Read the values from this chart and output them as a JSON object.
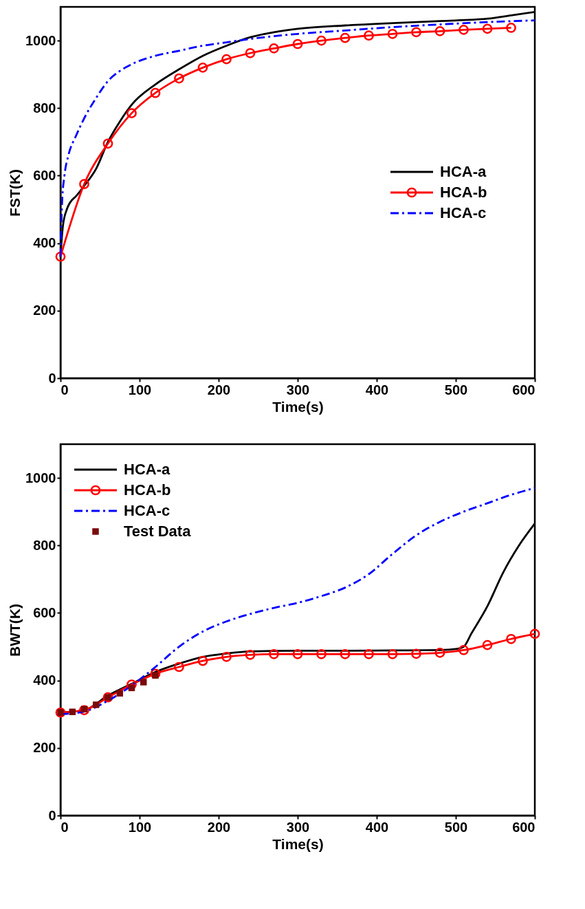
{
  "chart_data": [
    {
      "type": "line",
      "xlabel": "Time(s)",
      "ylabel": "FST(K)",
      "xlim": [
        0,
        600
      ],
      "ylim": [
        0,
        1100
      ],
      "xticks": [
        0,
        100,
        200,
        300,
        400,
        500,
        600
      ],
      "yticks": [
        0,
        200,
        400,
        600,
        800,
        1000
      ],
      "grid": false,
      "legend": "right",
      "series": [
        {
          "name": "HCA-a",
          "color": "#000000",
          "line_style": "solid",
          "marker": "none",
          "x": [
            0,
            3,
            8,
            12,
            20,
            30,
            45,
            60,
            75,
            90,
            120,
            150,
            180,
            210,
            240,
            270,
            300,
            360,
            420,
            480,
            540,
            570,
            600
          ],
          "values": [
            360,
            450,
            500,
            520,
            540,
            570,
            620,
            700,
            760,
            810,
            870,
            915,
            955,
            985,
            1010,
            1025,
            1035,
            1045,
            1052,
            1058,
            1065,
            1075,
            1085
          ]
        },
        {
          "name": "HCA-b",
          "color": "#ff0000",
          "line_style": "solid",
          "marker": "circle",
          "x": [
            0,
            30,
            60,
            90,
            120,
            150,
            180,
            210,
            240,
            270,
            300,
            330,
            360,
            390,
            420,
            450,
            480,
            510,
            540,
            570
          ],
          "values": [
            360,
            575,
            695,
            785,
            845,
            888,
            920,
            945,
            963,
            977,
            990,
            1000,
            1008,
            1015,
            1020,
            1025,
            1028,
            1032,
            1035,
            1038
          ]
        },
        {
          "name": "HCA-c",
          "color": "#0000ff",
          "line_style": "dashdot",
          "marker": "none",
          "x": [
            0,
            2,
            5,
            10,
            20,
            30,
            45,
            60,
            75,
            90,
            120,
            150,
            180,
            210,
            240,
            300,
            360,
            420,
            480,
            540,
            600
          ],
          "values": [
            360,
            520,
            600,
            660,
            720,
            770,
            830,
            880,
            910,
            930,
            955,
            970,
            985,
            995,
            1005,
            1020,
            1030,
            1040,
            1048,
            1055,
            1060
          ]
        }
      ]
    },
    {
      "type": "line",
      "xlabel": "Time(s)",
      "ylabel": "BWT(K)",
      "xlim": [
        0,
        600
      ],
      "ylim": [
        0,
        1100
      ],
      "xticks": [
        0,
        100,
        200,
        300,
        400,
        500,
        600
      ],
      "yticks": [
        0,
        200,
        400,
        600,
        800,
        1000
      ],
      "grid": false,
      "legend": "top left",
      "series": [
        {
          "name": "HCA-a",
          "color": "#000000",
          "line_style": "solid",
          "marker": "none",
          "x": [
            0,
            30,
            60,
            90,
            120,
            150,
            180,
            210,
            240,
            300,
            360,
            420,
            480,
            500,
            510,
            520,
            540,
            560,
            580,
            600
          ],
          "values": [
            305,
            312,
            355,
            390,
            425,
            450,
            470,
            480,
            486,
            488,
            488,
            489,
            490,
            493,
            500,
            540,
            620,
            720,
            800,
            865
          ]
        },
        {
          "name": "HCA-b",
          "color": "#ff0000",
          "line_style": "solid",
          "marker": "circle",
          "x": [
            0,
            30,
            60,
            90,
            120,
            150,
            180,
            210,
            240,
            270,
            300,
            330,
            360,
            390,
            420,
            450,
            480,
            510,
            540,
            570,
            600
          ],
          "values": [
            305,
            312,
            350,
            388,
            420,
            440,
            458,
            470,
            476,
            478,
            478,
            478,
            478,
            478,
            478,
            479,
            482,
            490,
            505,
            523,
            538
          ]
        },
        {
          "name": "HCA-c",
          "color": "#0000ff",
          "line_style": "dashdot",
          "marker": "none",
          "x": [
            0,
            30,
            60,
            90,
            120,
            150,
            180,
            210,
            240,
            270,
            300,
            330,
            360,
            390,
            420,
            450,
            480,
            510,
            540,
            570,
            600
          ],
          "values": [
            300,
            308,
            340,
            385,
            440,
            500,
            545,
            575,
            597,
            615,
            630,
            650,
            675,
            715,
            775,
            830,
            870,
            900,
            925,
            950,
            970
          ]
        },
        {
          "name": "Test Data",
          "type": "scatter",
          "color": "#7a0a0a",
          "marker": "square",
          "x": [
            0,
            15,
            30,
            45,
            60,
            75,
            90,
            105,
            120
          ],
          "values": [
            305,
            307,
            315,
            328,
            350,
            362,
            378,
            395,
            415
          ]
        }
      ]
    }
  ]
}
